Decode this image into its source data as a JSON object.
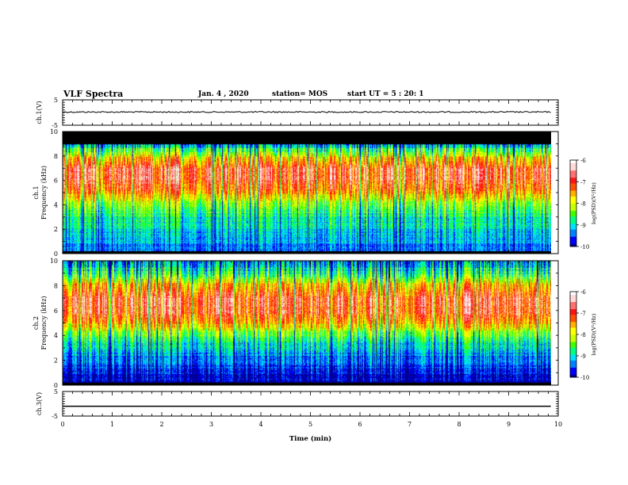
{
  "header": {
    "title": "VLF Spectra",
    "date": "Jan. 4 , 2020",
    "station": "station= MOS",
    "start_ut": "start UT = 5 : 20: 1"
  },
  "chart_data": [
    {
      "type": "line",
      "panel": "ch1-voltage",
      "ylabel": "ch.1(V)",
      "ylim": [
        -5,
        5
      ],
      "yticks": [
        -5,
        5
      ],
      "xlim": [
        0,
        10
      ],
      "series": [
        {
          "x": [
            0,
            9.85
          ],
          "y": [
            0.2,
            0.2
          ]
        }
      ],
      "color": "#000000"
    },
    {
      "type": "heatmap",
      "panel": "ch1-spectrogram",
      "ylabel": "ch.1 Frequency (kHz)",
      "ylim": [
        0,
        10
      ],
      "yticks": [
        0,
        2,
        4,
        6,
        8,
        10
      ],
      "xlim": [
        0,
        10
      ],
      "data_xmax": 9.85,
      "colorbar": {
        "label": "log(PSD)(V²/Hz)",
        "range": [
          -10,
          -6
        ],
        "ticks": [
          -10,
          -9,
          -8,
          -7,
          -6
        ]
      },
      "profile": [
        {
          "f": 0.3,
          "logpsd": -9.4
        },
        {
          "f": 1.0,
          "logpsd": -9.2
        },
        {
          "f": 2.0,
          "logpsd": -9.0
        },
        {
          "f": 3.0,
          "logpsd": -8.8
        },
        {
          "f": 4.0,
          "logpsd": -8.3
        },
        {
          "f": 5.0,
          "logpsd": -7.4
        },
        {
          "f": 6.0,
          "logpsd": -6.9
        },
        {
          "f": 7.0,
          "logpsd": -6.8
        },
        {
          "f": 8.0,
          "logpsd": -7.8
        },
        {
          "f": 8.8,
          "logpsd": -8.9
        },
        {
          "f": 9.2,
          "logpsd": -9.8
        }
      ],
      "saturated_band_kHz": [
        9.0,
        10.0
      ]
    },
    {
      "type": "heatmap",
      "panel": "ch2-spectrogram",
      "ylabel": "ch.2 Frequency (kHz)",
      "ylim": [
        0,
        10
      ],
      "yticks": [
        0,
        2,
        4,
        6,
        8,
        10
      ],
      "xlim": [
        0,
        10
      ],
      "data_xmax": 9.85,
      "colorbar": {
        "label": "log(PSD)(V²/Hz)",
        "range": [
          -10,
          -6
        ],
        "ticks": [
          -10,
          -9,
          -8,
          -7,
          -6
        ]
      },
      "profile": [
        {
          "f": 0.3,
          "logpsd": -9.9
        },
        {
          "f": 1.0,
          "logpsd": -9.7
        },
        {
          "f": 2.0,
          "logpsd": -9.4
        },
        {
          "f": 3.0,
          "logpsd": -9.0
        },
        {
          "f": 4.0,
          "logpsd": -8.5
        },
        {
          "f": 5.0,
          "logpsd": -7.5
        },
        {
          "f": 6.0,
          "logpsd": -6.9
        },
        {
          "f": 7.0,
          "logpsd": -6.8
        },
        {
          "f": 8.0,
          "logpsd": -7.5
        },
        {
          "f": 9.0,
          "logpsd": -8.6
        },
        {
          "f": 10.0,
          "logpsd": -9.3
        }
      ]
    },
    {
      "type": "line",
      "panel": "ch3-voltage",
      "ylabel": "ch.3(V)",
      "ylim": [
        -5,
        5
      ],
      "yticks": [
        -5,
        5
      ],
      "xlim": [
        0,
        10
      ],
      "xlabel": "Time (min)",
      "xticks": [
        0,
        1,
        2,
        3,
        4,
        5,
        6,
        7,
        8,
        9,
        10
      ],
      "series": [
        {
          "x": [
            0,
            9.85
          ],
          "y": [
            -1.0,
            -1.0
          ]
        }
      ],
      "color": "#000000"
    }
  ],
  "colormap": [
    "#000000",
    "#00008c",
    "#0000ff",
    "#0080ff",
    "#00e0ff",
    "#00ff80",
    "#40ff00",
    "#c8ff00",
    "#ffff00",
    "#ffb000",
    "#ff5000",
    "#ff1414",
    "#ff7070",
    "#ffd8d8",
    "#ffffff"
  ]
}
